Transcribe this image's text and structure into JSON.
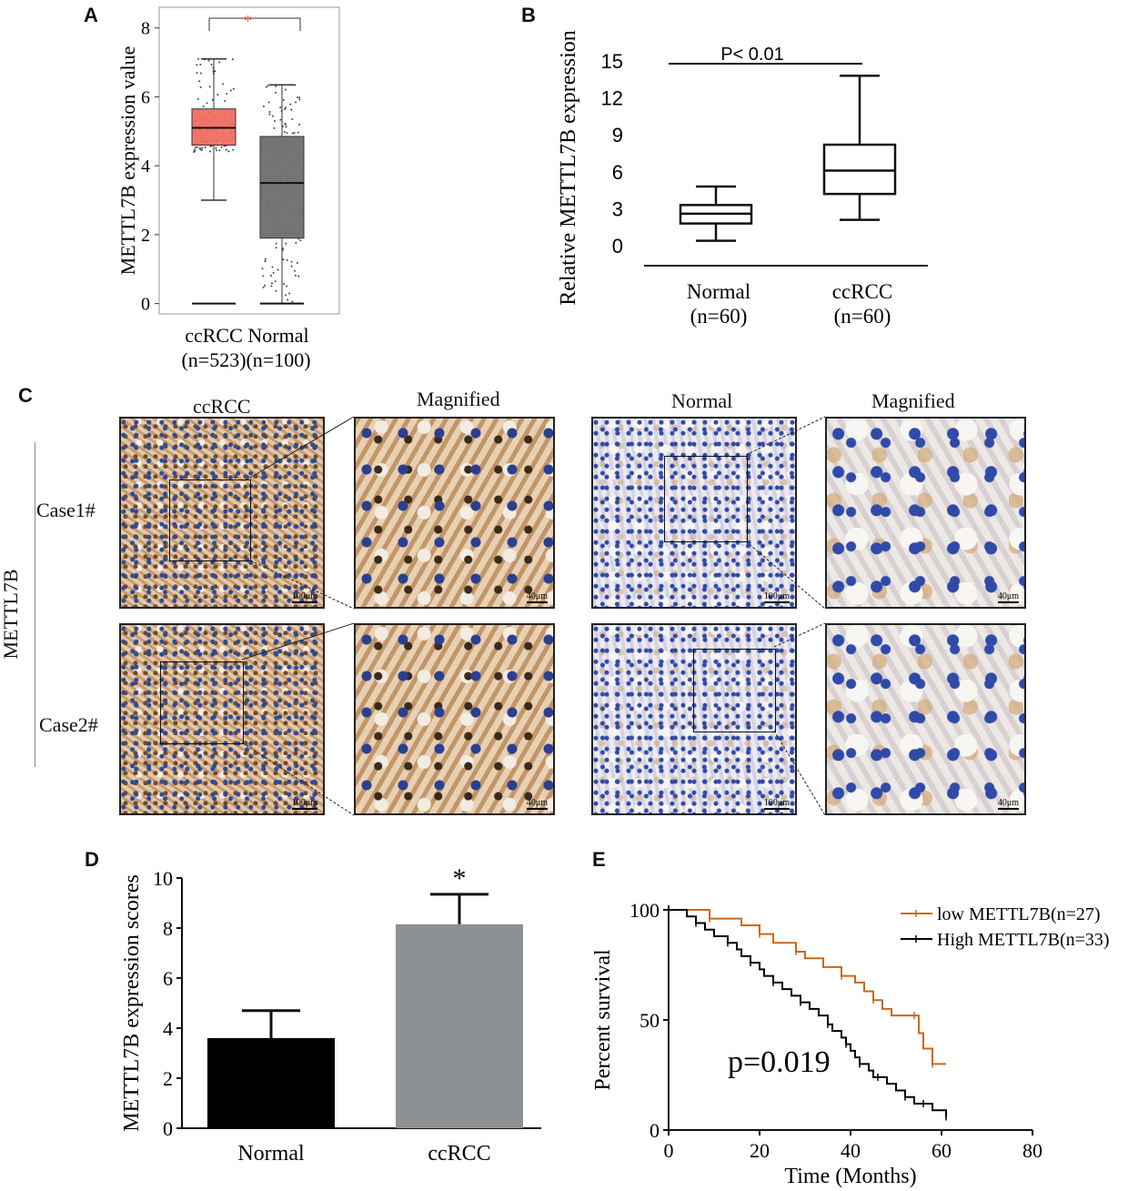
{
  "panels": {
    "A": "A",
    "B": "B",
    "C": "C",
    "D": "D",
    "E": "E"
  },
  "chart_data": [
    {
      "id": "A",
      "type": "box",
      "ylabel": "METTL7B expression value",
      "yticks": [
        0,
        2,
        4,
        6,
        8
      ],
      "ylim": [
        -0.3,
        8.6
      ],
      "significance": "*",
      "colors": {
        "ccRCC": "#ef6f63",
        "Normal": "#6b6e70",
        "sig": "#e8604d"
      },
      "groups": [
        {
          "name": "ccRCC",
          "n": "(n=523)",
          "whisker_low": 3.0,
          "q1": 4.6,
          "median": 5.1,
          "q3": 5.65,
          "whisker_high": 7.1,
          "floor": 0.0
        },
        {
          "name": "Normal",
          "n": "(n=100)",
          "whisker_low": 0.0,
          "q1": 1.9,
          "median": 3.5,
          "q3": 4.85,
          "whisker_high": 6.35,
          "floor": 0.0
        }
      ]
    },
    {
      "id": "B",
      "type": "box",
      "ylabel": "Relative METTL7B expression",
      "yticks": [
        0,
        3,
        6,
        9,
        12,
        15
      ],
      "ylim": [
        0,
        15
      ],
      "annotation": "P< 0.01",
      "groups": [
        {
          "name": "Normal",
          "n": "(n=60)",
          "min": 0.4,
          "q1": 1.8,
          "median": 2.6,
          "q3": 3.3,
          "max": 4.8
        },
        {
          "name": "ccRCC",
          "n": "(n=60)",
          "min": 2.1,
          "q1": 4.2,
          "median": 6.1,
          "q3": 8.2,
          "max": 13.8
        }
      ]
    },
    {
      "id": "D",
      "type": "bar",
      "ylabel": "METTL7B expression scores",
      "categories": [
        "Normal",
        "ccRCC"
      ],
      "values": [
        3.6,
        8.15
      ],
      "errors": [
        1.1,
        1.2
      ],
      "colors": [
        "#000000",
        "#8e9194"
      ],
      "yticks": [
        0,
        2,
        4,
        6,
        8,
        10
      ],
      "ylim": [
        0,
        10
      ],
      "significance": "*"
    },
    {
      "id": "E",
      "type": "line",
      "subtype": "kaplan-meier",
      "ylabel": "Percent survival",
      "xlabel": "Time (Months)",
      "xticks": [
        0,
        20,
        40,
        60,
        80
      ],
      "yticks": [
        0,
        50,
        100
      ],
      "xlim": [
        0,
        80
      ],
      "ylim": [
        0,
        100
      ],
      "annotation": "p=0.019",
      "legend_position": "top-right",
      "series": [
        {
          "name": "low METTL7B(n=27)",
          "color": "#c8691f",
          "x": [
            0,
            7,
            9,
            13,
            16,
            20,
            23,
            25,
            28,
            30,
            34,
            38,
            41,
            43,
            45,
            47,
            49,
            54,
            55,
            56,
            58,
            61
          ],
          "y": [
            100,
            100,
            96,
            96,
            93,
            89,
            85,
            85,
            81,
            78,
            74,
            70,
            67,
            63,
            59,
            55,
            52,
            52,
            44,
            37,
            30,
            30
          ]
        },
        {
          "name": "High METTL7B(n=33)",
          "color": "#000000",
          "x": [
            0,
            4,
            6,
            8,
            10,
            13,
            15,
            16,
            18,
            20,
            21,
            23,
            25,
            27,
            29,
            31,
            33,
            35,
            36,
            38,
            39,
            40,
            41,
            42,
            44,
            45,
            46,
            48,
            50,
            52,
            53,
            54,
            56,
            58,
            59,
            61
          ],
          "y": [
            100,
            97,
            94,
            91,
            88,
            85,
            82,
            79,
            76,
            73,
            70,
            67,
            64,
            61,
            58,
            55,
            52,
            48,
            45,
            42,
            39,
            36,
            33,
            30,
            27,
            24,
            24,
            21,
            18,
            15,
            15,
            12,
            12,
            9,
            9,
            6
          ]
        }
      ]
    }
  ],
  "ihc": {
    "marker": "METTL7B",
    "columns": [
      "ccRCC",
      "Magnified",
      "Normal",
      "Magnified"
    ],
    "rows": [
      "Case1#",
      "Case2#"
    ],
    "scale_large": "100μm",
    "scale_small": "40μm"
  }
}
